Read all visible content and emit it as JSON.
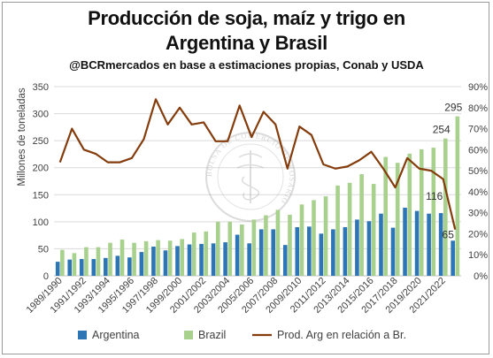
{
  "chart_data": {
    "type": "bar",
    "title": "Producción de soja, maíz y trigo en Argentina y Brasil",
    "title_line1": "Producción de soja, maíz y trigo en",
    "title_line2": "Argentina y Brasil",
    "subtitle": "@BCRmercados en base a estimaciones propias, Conab y USDA",
    "ylabel": "Millones de toneladas",
    "ylim": [
      0,
      350
    ],
    "y2lim": [
      0,
      90
    ],
    "y_ticks": [
      "0",
      "50",
      "100",
      "150",
      "200",
      "250",
      "300",
      "350"
    ],
    "y2_ticks": [
      "0%",
      "10%",
      "20%",
      "30%",
      "40%",
      "50%",
      "60%",
      "70%",
      "80%",
      "90%"
    ],
    "grid": true,
    "legend_position": "bottom",
    "categories": [
      "1989/1990",
      "1990/1991",
      "1991/1992",
      "1992/1993",
      "1993/1994",
      "1994/1995",
      "1995/1996",
      "1996/1997",
      "1997/1998",
      "1998/1999",
      "1999/2000",
      "2000/2001",
      "2001/2002",
      "2002/2003",
      "2003/2004",
      "2004/2005",
      "2005/2006",
      "2006/2007",
      "2007/2008",
      "2008/2009",
      "2009/2010",
      "2010/2011",
      "2011/2012",
      "2012/2013",
      "2013/2014",
      "2014/2015",
      "2015/2016",
      "2016/2017",
      "2017/2018",
      "2018/2019",
      "2019/2020",
      "2020/2021",
      "2021/2022",
      "2022/2023"
    ],
    "x_tick_labels": [
      "1989/1990",
      "1991/1992",
      "1993/1994",
      "1995/1996",
      "1997/1998",
      "1999/2000",
      "2001/2002",
      "2003/2004",
      "2005/2006",
      "2007/2008",
      "2009/2010",
      "2011/2012",
      "2013/2014",
      "2015/2016",
      "2017/2018",
      "2019/2020",
      "2021/2022"
    ],
    "series": [
      {
        "name": "Argentina",
        "type": "bar",
        "color": "#2e75b6",
        "values": [
          26,
          30,
          31,
          31,
          33,
          37,
          34,
          44,
          54,
          47,
          55,
          58,
          59,
          60,
          62,
          76,
          60,
          86,
          86,
          57,
          90,
          91,
          78,
          86,
          90,
          104,
          101,
          115,
          89,
          126,
          120,
          115,
          116,
          65
        ]
      },
      {
        "name": "Brazil",
        "type": "bar",
        "color": "#a9d18e",
        "values": [
          48,
          42,
          53,
          53,
          61,
          67,
          61,
          64,
          66,
          65,
          68,
          80,
          82,
          100,
          100,
          95,
          104,
          112,
          122,
          113,
          132,
          140,
          147,
          167,
          172,
          188,
          170,
          220,
          209,
          226,
          234,
          237,
          254,
          295
        ]
      },
      {
        "name": "Prod. Arg en relación a Br.",
        "type": "line",
        "axis": "right",
        "color": "#843c0c",
        "values": [
          0.54,
          0.7,
          0.6,
          0.58,
          0.54,
          0.54,
          0.56,
          0.65,
          0.84,
          0.72,
          0.8,
          0.72,
          0.73,
          0.64,
          0.64,
          0.81,
          0.66,
          0.78,
          0.72,
          0.51,
          0.71,
          0.67,
          0.53,
          0.51,
          0.52,
          0.55,
          0.59,
          0.51,
          0.42,
          0.56,
          0.51,
          0.5,
          0.46,
          0.22
        ]
      }
    ],
    "data_labels": [
      {
        "series": "Brazil",
        "category": "2021/2022",
        "text": "254"
      },
      {
        "series": "Brazil",
        "category": "2022/2023",
        "text": "295"
      },
      {
        "series": "Argentina",
        "category": "2021/2022",
        "text": "116"
      },
      {
        "series": "Argentina",
        "category": "2022/2023",
        "text": "65"
      }
    ],
    "watermark_text": "BOLSA DE COMERCIO DE ROSARIO"
  },
  "colors": {
    "argentina": "#2e75b6",
    "brazil": "#a9d18e",
    "ratio_line": "#843c0c",
    "grid": "#d9d9d9"
  }
}
